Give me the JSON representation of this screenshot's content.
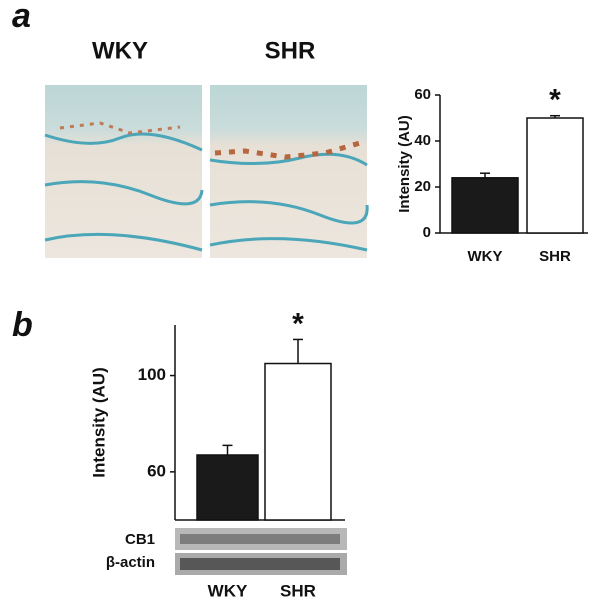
{
  "panel_labels": [
    "a",
    "b"
  ],
  "image_labels": [
    "WKY",
    "SHR"
  ],
  "blot_labels": [
    "CB1",
    "β-actin"
  ],
  "chart_data": [
    {
      "type": "bar",
      "y_label": "Intensity (AU)",
      "categories": [
        "WKY",
        "SHR"
      ],
      "values": [
        24,
        50
      ],
      "errors": [
        2,
        1
      ],
      "colors": [
        "#1a1a1a",
        "#ffffff"
      ],
      "annotation": "*",
      "ylim": [
        0,
        60
      ],
      "yticks": [
        0,
        20,
        40,
        60
      ]
    },
    {
      "type": "bar",
      "y_label": "Intensity (AU)",
      "categories": [
        "WKY",
        "SHR"
      ],
      "values": [
        67,
        105
      ],
      "errors": [
        4,
        10
      ],
      "colors": [
        "#1a1a1a",
        "#ffffff"
      ],
      "annotation": "*",
      "ylim": [
        40,
        121
      ],
      "yticks": [
        60,
        100
      ]
    }
  ]
}
